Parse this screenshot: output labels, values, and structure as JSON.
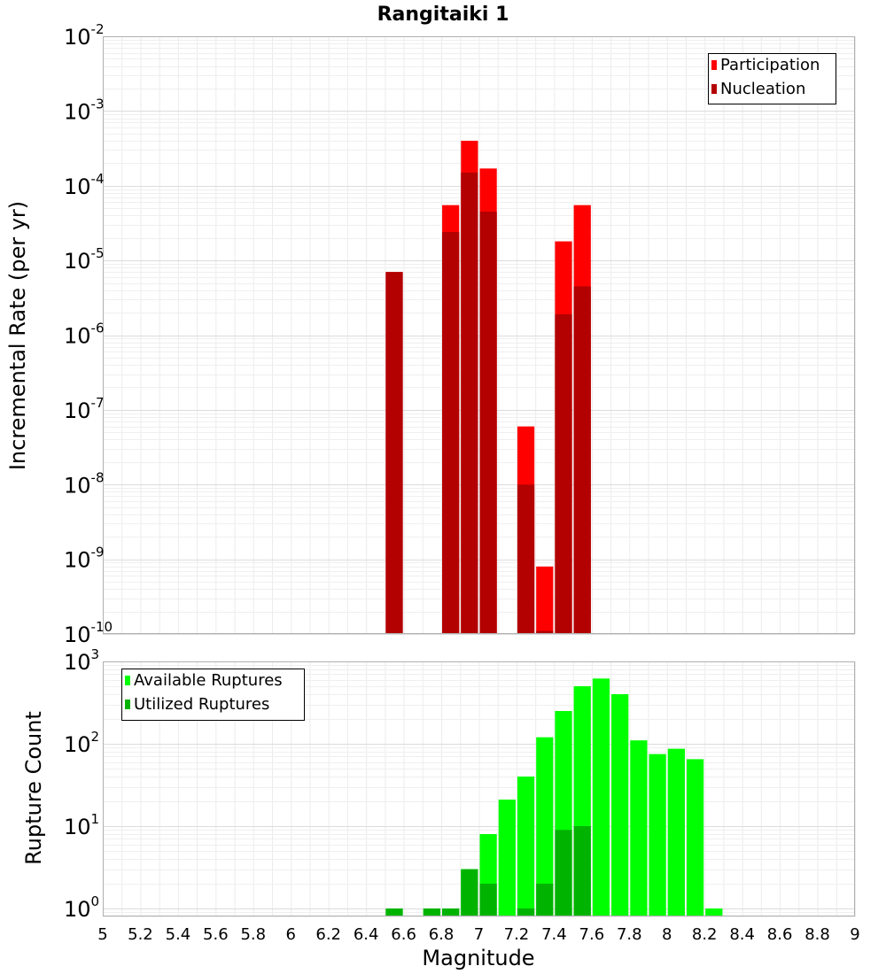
{
  "chart_data": [
    {
      "type": "bar",
      "title": "Rangitaiki 1",
      "ylabel": "Incremental Rate (per yr)",
      "xlabel": "",
      "yscale": "log",
      "ylim": [
        1e-10,
        0.01
      ],
      "xlim": [
        5,
        9
      ],
      "bin_width": 0.1,
      "legend_position": "top-right",
      "ytick_labels": [
        {
          "base": "10",
          "exp": "-2"
        },
        {
          "base": "10",
          "exp": "-3"
        },
        {
          "base": "10",
          "exp": "-4"
        },
        {
          "base": "10",
          "exp": "-5"
        },
        {
          "base": "10",
          "exp": "-6"
        },
        {
          "base": "10",
          "exp": "-7"
        },
        {
          "base": "10",
          "exp": "-8"
        },
        {
          "base": "10",
          "exp": "-9"
        },
        {
          "base": "10",
          "exp": "-10"
        }
      ],
      "series": [
        {
          "name": "Participation",
          "color": "#ff0000",
          "x": [
            6.55,
            6.85,
            6.95,
            7.05,
            7.25,
            7.35,
            7.45,
            7.55
          ],
          "values": [
            7e-06,
            5.5e-05,
            0.0004,
            0.00017,
            6e-08,
            8e-10,
            1.8e-05,
            5.5e-05
          ]
        },
        {
          "name": "Nucleation",
          "color": "#b30000",
          "x": [
            6.55,
            6.85,
            6.95,
            7.05,
            7.25,
            7.35,
            7.45,
            7.55
          ],
          "values": [
            7e-06,
            2.4e-05,
            0.00015,
            4.5e-05,
            1e-08,
            1.1e-10,
            1.9e-06,
            4.5e-06
          ]
        }
      ]
    },
    {
      "type": "bar",
      "title": "",
      "ylabel": "Rupture Count",
      "xlabel": "Magnitude",
      "yscale": "log",
      "ylim": [
        0.8,
        1000
      ],
      "xlim": [
        5,
        9
      ],
      "bin_width": 0.1,
      "legend_position": "top-left",
      "xtick_labels": [
        "5",
        "5.2",
        "5.4",
        "5.6",
        "5.8",
        "6",
        "6.2",
        "6.4",
        "6.6",
        "6.8",
        "7",
        "7.2",
        "7.4",
        "7.6",
        "7.8",
        "8",
        "8.2",
        "8.4",
        "8.6",
        "8.8",
        "9"
      ],
      "ytick_labels": [
        {
          "base": "10",
          "exp": "3"
        },
        {
          "base": "10",
          "exp": "2"
        },
        {
          "base": "10",
          "exp": "1"
        },
        {
          "base": "10",
          "exp": "0"
        }
      ],
      "series": [
        {
          "name": "Available Ruptures",
          "color": "#00ff00",
          "x": [
            6.55,
            6.75,
            6.85,
            6.95,
            7.05,
            7.15,
            7.25,
            7.35,
            7.45,
            7.55,
            7.65,
            7.75,
            7.85,
            7.95,
            8.05,
            8.15,
            8.25
          ],
          "values": [
            1,
            1,
            1,
            3,
            8,
            21,
            40,
            120,
            250,
            500,
            620,
            400,
            110,
            75,
            87,
            65,
            1
          ]
        },
        {
          "name": "Utilized Ruptures",
          "color": "#00b300",
          "x": [
            6.55,
            6.75,
            6.85,
            6.95,
            7.05,
            7.25,
            7.35,
            7.45,
            7.55
          ],
          "values": [
            1,
            1,
            1,
            3,
            2,
            1,
            2,
            9,
            10
          ]
        }
      ]
    }
  ]
}
